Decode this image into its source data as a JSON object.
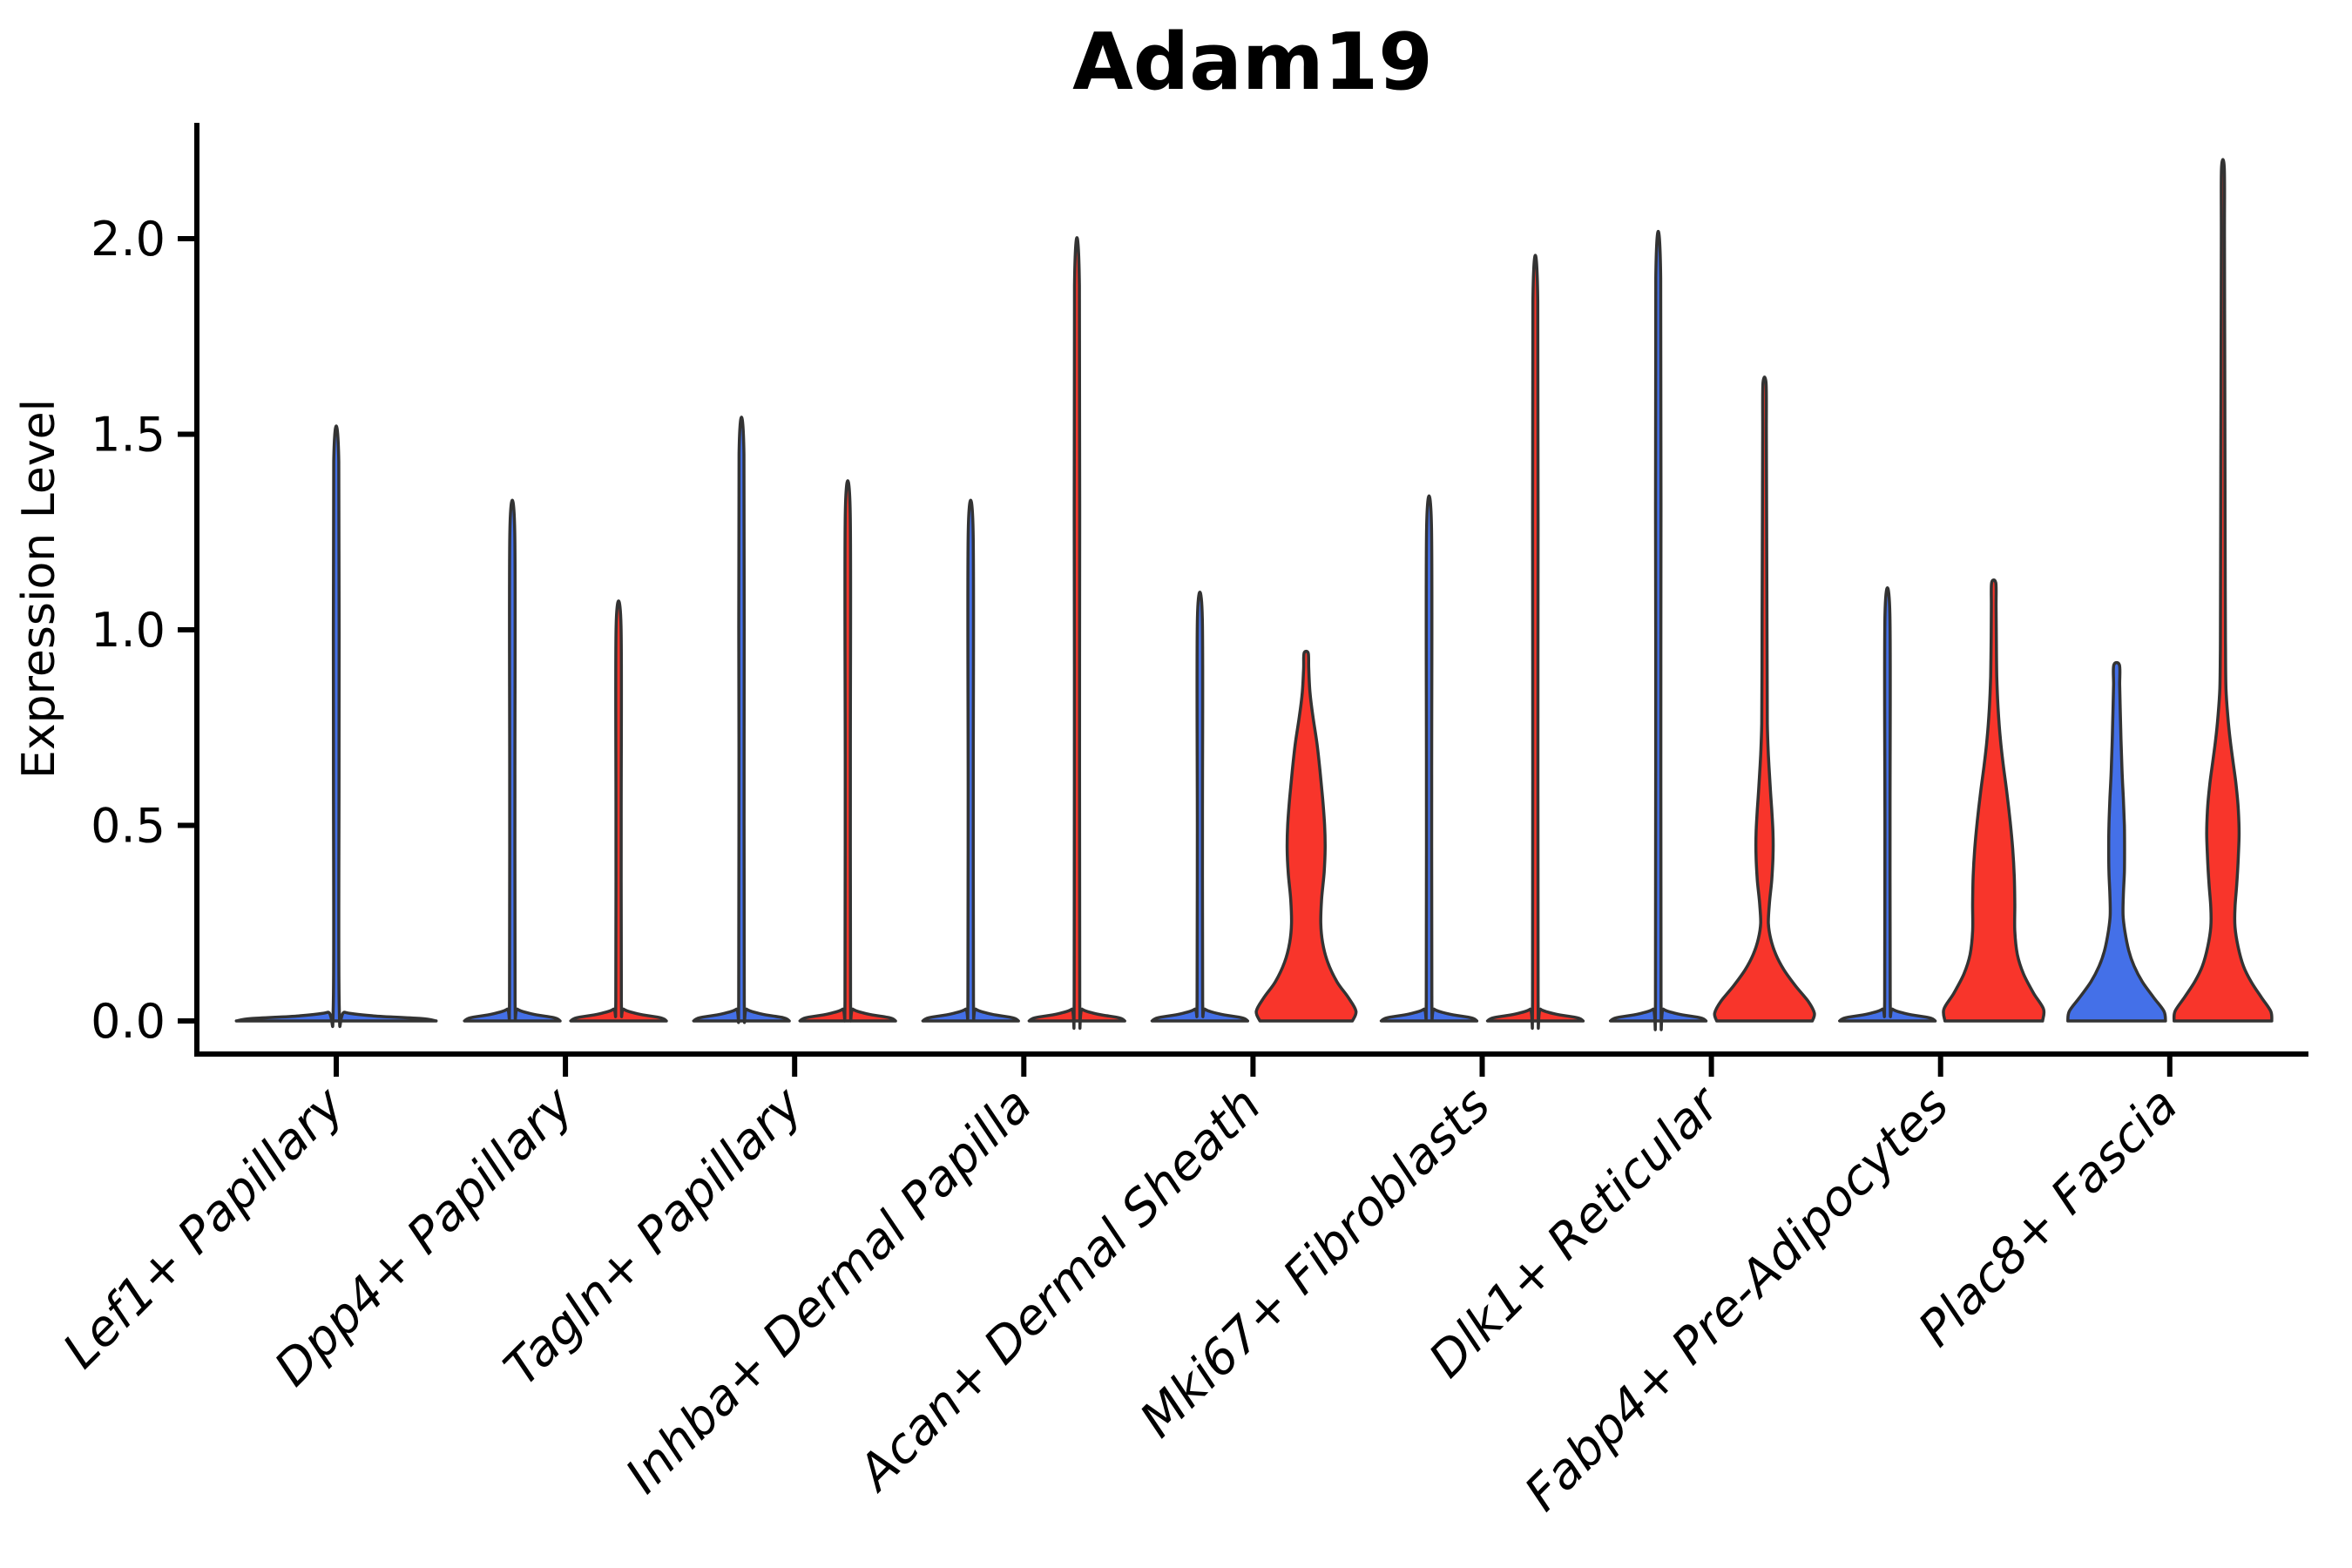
{
  "page": {
    "background": "#ffffff"
  },
  "chart_data": {
    "type": "violin",
    "title": "Adam19",
    "ylabel": "Expression Level",
    "xlabel": "",
    "grid": false,
    "legend": "none",
    "x_tick_rotation_deg": 45,
    "ytick_labels": [
      "0.0",
      "0.5",
      "1.0",
      "1.5",
      "2.0"
    ],
    "ytick_values": [
      0.0,
      0.5,
      1.0,
      1.5,
      2.0
    ],
    "ylim": [
      -0.085,
      2.295
    ],
    "categories": [
      "Lef1+ Papillary",
      "Dpp4+ Papillary",
      "Tagln+ Papillary",
      "Inhba+ Dermal Papilla",
      "Acan+ Dermal Sheath",
      "Mki67+ Fibroblasts",
      "Dlk1+ Reticular",
      "Fabp4+ Pre-Adipocytes",
      "Plac8+ Fascia"
    ],
    "groups": [
      {
        "id": "left",
        "color": "#4470e8"
      },
      {
        "id": "right",
        "color": "#f8352b"
      }
    ],
    "outline_color": "#333333",
    "axis_color": "#000000",
    "violins": [
      {
        "category": "Lef1+ Papillary",
        "side": "center",
        "group": "left",
        "color": "#4470e8",
        "max_expression": 1.43,
        "profile": [
          [
            0,
            0.94
          ],
          [
            0.006,
            0.8
          ],
          [
            0.013,
            0.35
          ],
          [
            0.022,
            0.08
          ],
          [
            0.04,
            0.028
          ],
          [
            0.7,
            0.026
          ],
          [
            1.43,
            0.024
          ]
        ]
      },
      {
        "category": "Dpp4+ Papillary",
        "side": "left",
        "group": "left",
        "color": "#4470e8",
        "max_expression": 1.25,
        "profile": [
          [
            0,
            0.93
          ],
          [
            0.008,
            0.82
          ],
          [
            0.018,
            0.38
          ],
          [
            0.03,
            0.1
          ],
          [
            0.05,
            0.055
          ],
          [
            0.6,
            0.05
          ],
          [
            1.25,
            0.048
          ]
        ]
      },
      {
        "category": "Dpp4+ Papillary",
        "side": "right",
        "group": "right",
        "color": "#f8352b",
        "max_expression": 1.01,
        "profile": [
          [
            0,
            0.93
          ],
          [
            0.008,
            0.82
          ],
          [
            0.018,
            0.38
          ],
          [
            0.03,
            0.1
          ],
          [
            0.05,
            0.055
          ],
          [
            0.5,
            0.05
          ],
          [
            1.01,
            0.048
          ]
        ]
      },
      {
        "category": "Tagln+ Papillary",
        "side": "left",
        "group": "left",
        "color": "#4470e8",
        "max_expression": 1.45,
        "profile": [
          [
            0,
            0.93
          ],
          [
            0.008,
            0.82
          ],
          [
            0.018,
            0.38
          ],
          [
            0.03,
            0.1
          ],
          [
            0.05,
            0.055
          ],
          [
            0.7,
            0.05
          ],
          [
            1.45,
            0.048
          ]
        ]
      },
      {
        "category": "Tagln+ Papillary",
        "side": "right",
        "group": "right",
        "color": "#f8352b",
        "max_expression": 1.3,
        "profile": [
          [
            0,
            0.93
          ],
          [
            0.008,
            0.82
          ],
          [
            0.018,
            0.38
          ],
          [
            0.03,
            0.1
          ],
          [
            0.05,
            0.055
          ],
          [
            0.65,
            0.05
          ],
          [
            1.3,
            0.048
          ]
        ]
      },
      {
        "category": "Inhba+ Dermal Papilla",
        "side": "left",
        "group": "left",
        "color": "#4470e8",
        "max_expression": 1.25,
        "profile": [
          [
            0,
            0.93
          ],
          [
            0.008,
            0.82
          ],
          [
            0.018,
            0.38
          ],
          [
            0.03,
            0.1
          ],
          [
            0.05,
            0.055
          ],
          [
            0.6,
            0.05
          ],
          [
            1.25,
            0.048
          ]
        ]
      },
      {
        "category": "Inhba+ Dermal Papilla",
        "side": "right",
        "group": "right",
        "color": "#f8352b",
        "max_expression": 1.88,
        "profile": [
          [
            0,
            0.93
          ],
          [
            0.008,
            0.82
          ],
          [
            0.018,
            0.38
          ],
          [
            0.03,
            0.1
          ],
          [
            0.05,
            0.055
          ],
          [
            0.9,
            0.05
          ],
          [
            1.88,
            0.048
          ]
        ]
      },
      {
        "category": "Acan+ Dermal Sheath",
        "side": "left",
        "group": "left",
        "color": "#4470e8",
        "max_expression": 1.03,
        "profile": [
          [
            0,
            0.93
          ],
          [
            0.008,
            0.82
          ],
          [
            0.018,
            0.38
          ],
          [
            0.03,
            0.1
          ],
          [
            0.05,
            0.055
          ],
          [
            0.5,
            0.05
          ],
          [
            1.03,
            0.048
          ]
        ]
      },
      {
        "category": "Acan+ Dermal Sheath",
        "side": "right",
        "group": "right",
        "color": "#f8352b",
        "max_expression": 0.94,
        "profile": [
          [
            0,
            0.9
          ],
          [
            0.025,
            0.97
          ],
          [
            0.06,
            0.82
          ],
          [
            0.1,
            0.6
          ],
          [
            0.15,
            0.42
          ],
          [
            0.2,
            0.32
          ],
          [
            0.25,
            0.285
          ],
          [
            0.31,
            0.3
          ],
          [
            0.38,
            0.35
          ],
          [
            0.44,
            0.37
          ],
          [
            0.5,
            0.36
          ],
          [
            0.57,
            0.32
          ],
          [
            0.64,
            0.27
          ],
          [
            0.71,
            0.21
          ],
          [
            0.78,
            0.13
          ],
          [
            0.84,
            0.075
          ],
          [
            0.9,
            0.05
          ],
          [
            0.94,
            0.04
          ]
        ]
      },
      {
        "category": "Mki67+ Fibroblasts",
        "side": "left",
        "group": "left",
        "color": "#4470e8",
        "max_expression": 1.26,
        "profile": [
          [
            0,
            0.93
          ],
          [
            0.008,
            0.82
          ],
          [
            0.018,
            0.38
          ],
          [
            0.03,
            0.1
          ],
          [
            0.05,
            0.055
          ],
          [
            0.6,
            0.05
          ],
          [
            1.26,
            0.048
          ]
        ]
      },
      {
        "category": "Mki67+ Fibroblasts",
        "side": "right",
        "group": "right",
        "color": "#f8352b",
        "max_expression": 1.84,
        "profile": [
          [
            0,
            0.93
          ],
          [
            0.008,
            0.82
          ],
          [
            0.018,
            0.38
          ],
          [
            0.03,
            0.1
          ],
          [
            0.05,
            0.055
          ],
          [
            0.9,
            0.05
          ],
          [
            1.84,
            0.048
          ]
        ]
      },
      {
        "category": "Dlk1+ Reticular",
        "side": "left",
        "group": "left",
        "color": "#4470e8",
        "max_expression": 1.9,
        "profile": [
          [
            0,
            0.93
          ],
          [
            0.008,
            0.82
          ],
          [
            0.018,
            0.38
          ],
          [
            0.03,
            0.1
          ],
          [
            0.05,
            0.055
          ],
          [
            0.95,
            0.05
          ],
          [
            1.9,
            0.048
          ]
        ]
      },
      {
        "category": "Dlk1+ Reticular",
        "side": "right",
        "group": "right",
        "color": "#f8352b",
        "max_expression": 1.63,
        "profile": [
          [
            0,
            0.93
          ],
          [
            0.02,
            0.97
          ],
          [
            0.05,
            0.85
          ],
          [
            0.09,
            0.6
          ],
          [
            0.13,
            0.38
          ],
          [
            0.17,
            0.22
          ],
          [
            0.21,
            0.12
          ],
          [
            0.25,
            0.075
          ],
          [
            0.3,
            0.095
          ],
          [
            0.36,
            0.14
          ],
          [
            0.42,
            0.165
          ],
          [
            0.48,
            0.165
          ],
          [
            0.54,
            0.14
          ],
          [
            0.6,
            0.11
          ],
          [
            0.68,
            0.075
          ],
          [
            0.76,
            0.055
          ],
          [
            0.9,
            0.05
          ],
          [
            1.1,
            0.045
          ],
          [
            1.3,
            0.04
          ],
          [
            1.5,
            0.035
          ],
          [
            1.63,
            0.03
          ]
        ]
      },
      {
        "category": "Fabp4+ Pre-Adipocytes",
        "side": "left",
        "group": "left",
        "color": "#4470e8",
        "max_expression": 1.04,
        "profile": [
          [
            0,
            0.93
          ],
          [
            0.008,
            0.82
          ],
          [
            0.018,
            0.38
          ],
          [
            0.03,
            0.1
          ],
          [
            0.05,
            0.055
          ],
          [
            0.5,
            0.05
          ],
          [
            1.04,
            0.048
          ]
        ]
      },
      {
        "category": "Fabp4+ Pre-Adipocytes",
        "side": "right",
        "group": "right",
        "color": "#f8352b",
        "max_expression": 1.12,
        "profile": [
          [
            0,
            0.95
          ],
          [
            0.03,
            0.97
          ],
          [
            0.07,
            0.78
          ],
          [
            0.12,
            0.58
          ],
          [
            0.17,
            0.46
          ],
          [
            0.23,
            0.41
          ],
          [
            0.3,
            0.41
          ],
          [
            0.37,
            0.4
          ],
          [
            0.44,
            0.37
          ],
          [
            0.51,
            0.32
          ],
          [
            0.58,
            0.26
          ],
          [
            0.65,
            0.19
          ],
          [
            0.72,
            0.13
          ],
          [
            0.8,
            0.085
          ],
          [
            0.88,
            0.06
          ],
          [
            0.98,
            0.05
          ],
          [
            1.06,
            0.045
          ],
          [
            1.12,
            0.04
          ]
        ]
      },
      {
        "category": "Plac8+ Fascia",
        "side": "left",
        "group": "left",
        "color": "#4470e8",
        "max_expression": 0.91,
        "profile": [
          [
            0,
            0.95
          ],
          [
            0.025,
            0.92
          ],
          [
            0.06,
            0.72
          ],
          [
            0.1,
            0.5
          ],
          [
            0.14,
            0.34
          ],
          [
            0.18,
            0.235
          ],
          [
            0.23,
            0.16
          ],
          [
            0.27,
            0.125
          ],
          [
            0.32,
            0.13
          ],
          [
            0.38,
            0.15
          ],
          [
            0.44,
            0.155
          ],
          [
            0.5,
            0.15
          ],
          [
            0.57,
            0.13
          ],
          [
            0.64,
            0.105
          ],
          [
            0.72,
            0.085
          ],
          [
            0.8,
            0.07
          ],
          [
            0.86,
            0.06
          ],
          [
            0.91,
            0.055
          ]
        ]
      },
      {
        "category": "Plac8+ Fascia",
        "side": "right",
        "group": "right",
        "color": "#f8352b",
        "max_expression": 2.18,
        "profile": [
          [
            0,
            0.95
          ],
          [
            0.025,
            0.93
          ],
          [
            0.06,
            0.75
          ],
          [
            0.1,
            0.55
          ],
          [
            0.14,
            0.4
          ],
          [
            0.19,
            0.295
          ],
          [
            0.24,
            0.235
          ],
          [
            0.29,
            0.235
          ],
          [
            0.35,
            0.27
          ],
          [
            0.42,
            0.3
          ],
          [
            0.48,
            0.315
          ],
          [
            0.54,
            0.3
          ],
          [
            0.6,
            0.26
          ],
          [
            0.66,
            0.2
          ],
          [
            0.72,
            0.14
          ],
          [
            0.78,
            0.095
          ],
          [
            0.85,
            0.06
          ],
          [
            0.95,
            0.05
          ],
          [
            1.1,
            0.045
          ],
          [
            1.4,
            0.04
          ],
          [
            1.7,
            0.035
          ],
          [
            2.0,
            0.03
          ],
          [
            2.18,
            0.027
          ]
        ]
      }
    ]
  }
}
